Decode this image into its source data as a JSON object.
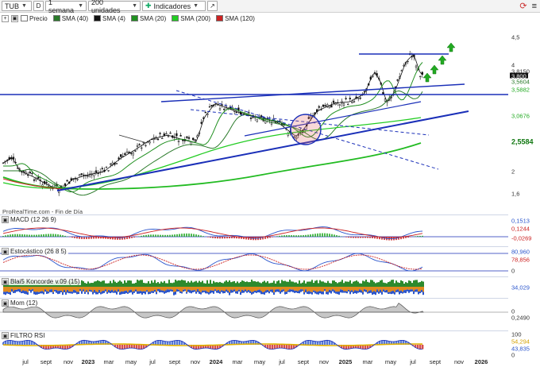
{
  "toolbar": {
    "symbol": "TUB",
    "d_button": "D",
    "period": "1 semana",
    "units": "200 unidades",
    "indicators": "Indicadores"
  },
  "legend": [
    {
      "label": "Precio",
      "color": "#ffffff"
    },
    {
      "label": "SMA (40)",
      "color": "#2a7a2a"
    },
    {
      "label": "SMA (4)",
      "color": "#111111"
    },
    {
      "label": "SMA (20)",
      "color": "#1f8f1f"
    },
    {
      "label": "SMA (200)",
      "color": "#22cc22"
    },
    {
      "label": "SMA (120)",
      "color": "#cc2222"
    }
  ],
  "watermark": "ProRealTime.com - Fin de Día",
  "price_axis": {
    "ticks": [
      "4,5",
      "4",
      "3,5",
      "3",
      "2,5",
      "2",
      "1,6"
    ],
    "boxes": [
      {
        "text": "3,8150",
        "bg": "#ffffff",
        "fg": "#333333"
      },
      {
        "text": "3,800",
        "bg": "#111111",
        "fg": "#ffffff"
      },
      {
        "text": "3,5604",
        "bg": "#ffffff",
        "fg": "#2a7a2a"
      },
      {
        "text": "3,5882",
        "bg": "#ffffff",
        "fg": "#22aa22"
      },
      {
        "text": "3,0676",
        "bg": "#ffffff",
        "fg": "#22aa22"
      },
      {
        "text": "2,5584",
        "bg": "#ffffff",
        "fg": "#117711"
      }
    ]
  },
  "macd": {
    "title": "MACD (12 26 9)",
    "values": [
      "0,1513",
      "0,1244",
      "-0,0269"
    ]
  },
  "stoch": {
    "title": "Estocástico (26 8 5)",
    "values": [
      "80,960",
      "78,856"
    ],
    "ticks": [
      "0"
    ]
  },
  "koncorde": {
    "title": "Blai5 Koncorde v.09 (15)",
    "values": [
      "34,029"
    ]
  },
  "momentum": {
    "title": "Mom (12)",
    "values": [
      "0,2490"
    ],
    "ticks": [
      "0"
    ]
  },
  "rsi": {
    "title": "FILTRO RSI",
    "values": [
      "100",
      "54,294",
      "43,835"
    ],
    "ticks": [
      "0"
    ]
  },
  "x_axis": [
    {
      "label": "jul",
      "year": false
    },
    {
      "label": "sept",
      "year": false
    },
    {
      "label": "nov",
      "year": false
    },
    {
      "label": "2023",
      "year": true
    },
    {
      "label": "mar",
      "year": false
    },
    {
      "label": "may",
      "year": false
    },
    {
      "label": "jul",
      "year": false
    },
    {
      "label": "sept",
      "year": false
    },
    {
      "label": "nov",
      "year": false
    },
    {
      "label": "2024",
      "year": true
    },
    {
      "label": "mar",
      "year": false
    },
    {
      "label": "may",
      "year": false
    },
    {
      "label": "jul",
      "year": false
    },
    {
      "label": "sept",
      "year": false
    },
    {
      "label": "nov",
      "year": false
    },
    {
      "label": "2025",
      "year": true
    },
    {
      "label": "mar",
      "year": false
    },
    {
      "label": "may",
      "year": false
    },
    {
      "label": "jul",
      "year": false
    },
    {
      "label": "sept",
      "year": false
    },
    {
      "label": "nov",
      "year": false
    },
    {
      "label": "2026",
      "year": true
    }
  ],
  "colors": {
    "trendline": "#1a2fb8",
    "up_arrow": "#22aa22",
    "circle": "#1a2fb8",
    "macd_up": "#22aa22",
    "macd_down": "#cc2222"
  }
}
